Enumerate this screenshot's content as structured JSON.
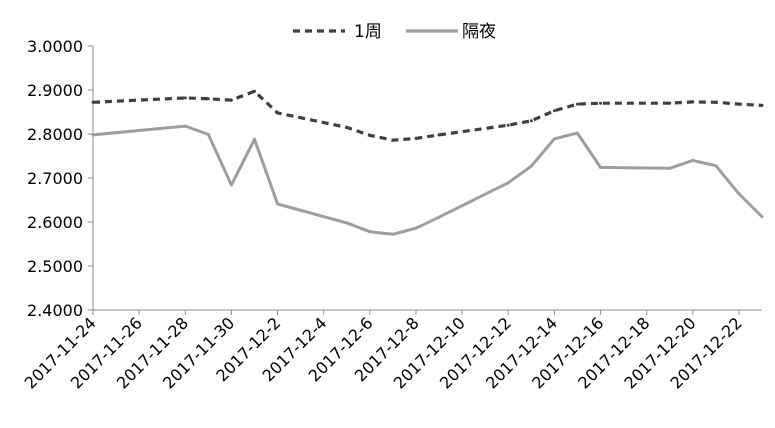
{
  "chart_data": {
    "type": "line",
    "title": "",
    "xlabel": "",
    "ylabel": "",
    "ylim": [
      2.4,
      3.0
    ],
    "y_ticks": [
      "3.0000",
      "2.9000",
      "2.8000",
      "2.7000",
      "2.6000",
      "2.5000",
      "2.4000"
    ],
    "y_tick_values": [
      3.0,
      2.9,
      2.8,
      2.7,
      2.6,
      2.5,
      2.4
    ],
    "x_ticks": [
      "2017-11-24",
      "2017-11-26",
      "2017-11-28",
      "2017-11-30",
      "2017-12-2",
      "2017-12-4",
      "2017-12-6",
      "2017-12-8",
      "2017-12-10",
      "2017-12-12",
      "2017-12-14",
      "2017-12-16",
      "2017-12-18",
      "2017-12-20",
      "2017-12-22"
    ],
    "x_tick_dates": [
      "2017-11-24",
      "2017-11-26",
      "2017-11-28",
      "2017-11-30",
      "2017-12-02",
      "2017-12-04",
      "2017-12-06",
      "2017-12-08",
      "2017-12-10",
      "2017-12-12",
      "2017-12-14",
      "2017-12-16",
      "2017-12-18",
      "2017-12-20",
      "2017-12-22"
    ],
    "x_range": [
      "2017-11-24",
      "2017-12-23"
    ],
    "grid": false,
    "legend_position": "top-center",
    "series": [
      {
        "name": "1周",
        "color": "#404040",
        "style": "dashed",
        "points": [
          {
            "x": "2017-11-24",
            "y": 2.872
          },
          {
            "x": "2017-11-28",
            "y": 2.882
          },
          {
            "x": "2017-11-29",
            "y": 2.88
          },
          {
            "x": "2017-11-30",
            "y": 2.877
          },
          {
            "x": "2017-12-01",
            "y": 2.897
          },
          {
            "x": "2017-12-02",
            "y": 2.848
          },
          {
            "x": "2017-12-05",
            "y": 2.815
          },
          {
            "x": "2017-12-06",
            "y": 2.797
          },
          {
            "x": "2017-12-07",
            "y": 2.786
          },
          {
            "x": "2017-12-08",
            "y": 2.79
          },
          {
            "x": "2017-12-09",
            "y": 2.798
          },
          {
            "x": "2017-12-12",
            "y": 2.82
          },
          {
            "x": "2017-12-13",
            "y": 2.83
          },
          {
            "x": "2017-12-14",
            "y": 2.853
          },
          {
            "x": "2017-12-15",
            "y": 2.868
          },
          {
            "x": "2017-12-16",
            "y": 2.87
          },
          {
            "x": "2017-12-19",
            "y": 2.87
          },
          {
            "x": "2017-12-20",
            "y": 2.873
          },
          {
            "x": "2017-12-21",
            "y": 2.872
          },
          {
            "x": "2017-12-22",
            "y": 2.868
          },
          {
            "x": "2017-12-23",
            "y": 2.865
          }
        ]
      },
      {
        "name": "隔夜",
        "color": "#9e9e9e",
        "style": "solid",
        "points": [
          {
            "x": "2017-11-24",
            "y": 2.798
          },
          {
            "x": "2017-11-28",
            "y": 2.818
          },
          {
            "x": "2017-11-29",
            "y": 2.799
          },
          {
            "x": "2017-11-30",
            "y": 2.684
          },
          {
            "x": "2017-12-01",
            "y": 2.788
          },
          {
            "x": "2017-12-02",
            "y": 2.641
          },
          {
            "x": "2017-12-05",
            "y": 2.598
          },
          {
            "x": "2017-12-06",
            "y": 2.578
          },
          {
            "x": "2017-12-07",
            "y": 2.572
          },
          {
            "x": "2017-12-08",
            "y": 2.586
          },
          {
            "x": "2017-12-09",
            "y": 2.611
          },
          {
            "x": "2017-12-12",
            "y": 2.689
          },
          {
            "x": "2017-12-13",
            "y": 2.727
          },
          {
            "x": "2017-12-14",
            "y": 2.789
          },
          {
            "x": "2017-12-15",
            "y": 2.802
          },
          {
            "x": "2017-12-16",
            "y": 2.724
          },
          {
            "x": "2017-12-19",
            "y": 2.722
          },
          {
            "x": "2017-12-20",
            "y": 2.74
          },
          {
            "x": "2017-12-21",
            "y": 2.728
          },
          {
            "x": "2017-12-22",
            "y": 2.664
          },
          {
            "x": "2017-12-23",
            "y": 2.612
          }
        ]
      }
    ]
  }
}
